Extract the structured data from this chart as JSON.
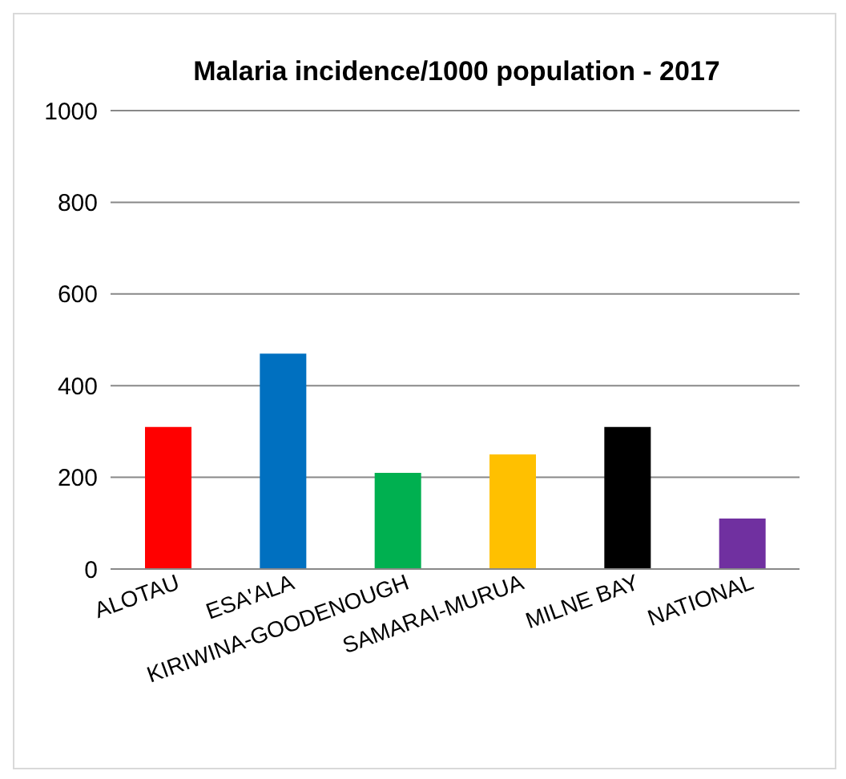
{
  "chart_data": {
    "type": "bar",
    "title": "Malaria incidence/1000 population - 2017",
    "categories": [
      "ALOTAU",
      "ESA'ALA",
      "KIRIWINA-GOODENOUGH",
      "SAMARAI-MURUA",
      "MILNE BAY",
      "NATIONAL"
    ],
    "values": [
      310,
      470,
      210,
      250,
      310,
      110
    ],
    "colors": [
      "#ff0000",
      "#0070c0",
      "#00b050",
      "#ffc000",
      "#000000",
      "#7030a0"
    ],
    "ylim": [
      0,
      1000
    ],
    "yticks": [
      0,
      200,
      400,
      600,
      800,
      1000
    ],
    "grid": "y"
  }
}
